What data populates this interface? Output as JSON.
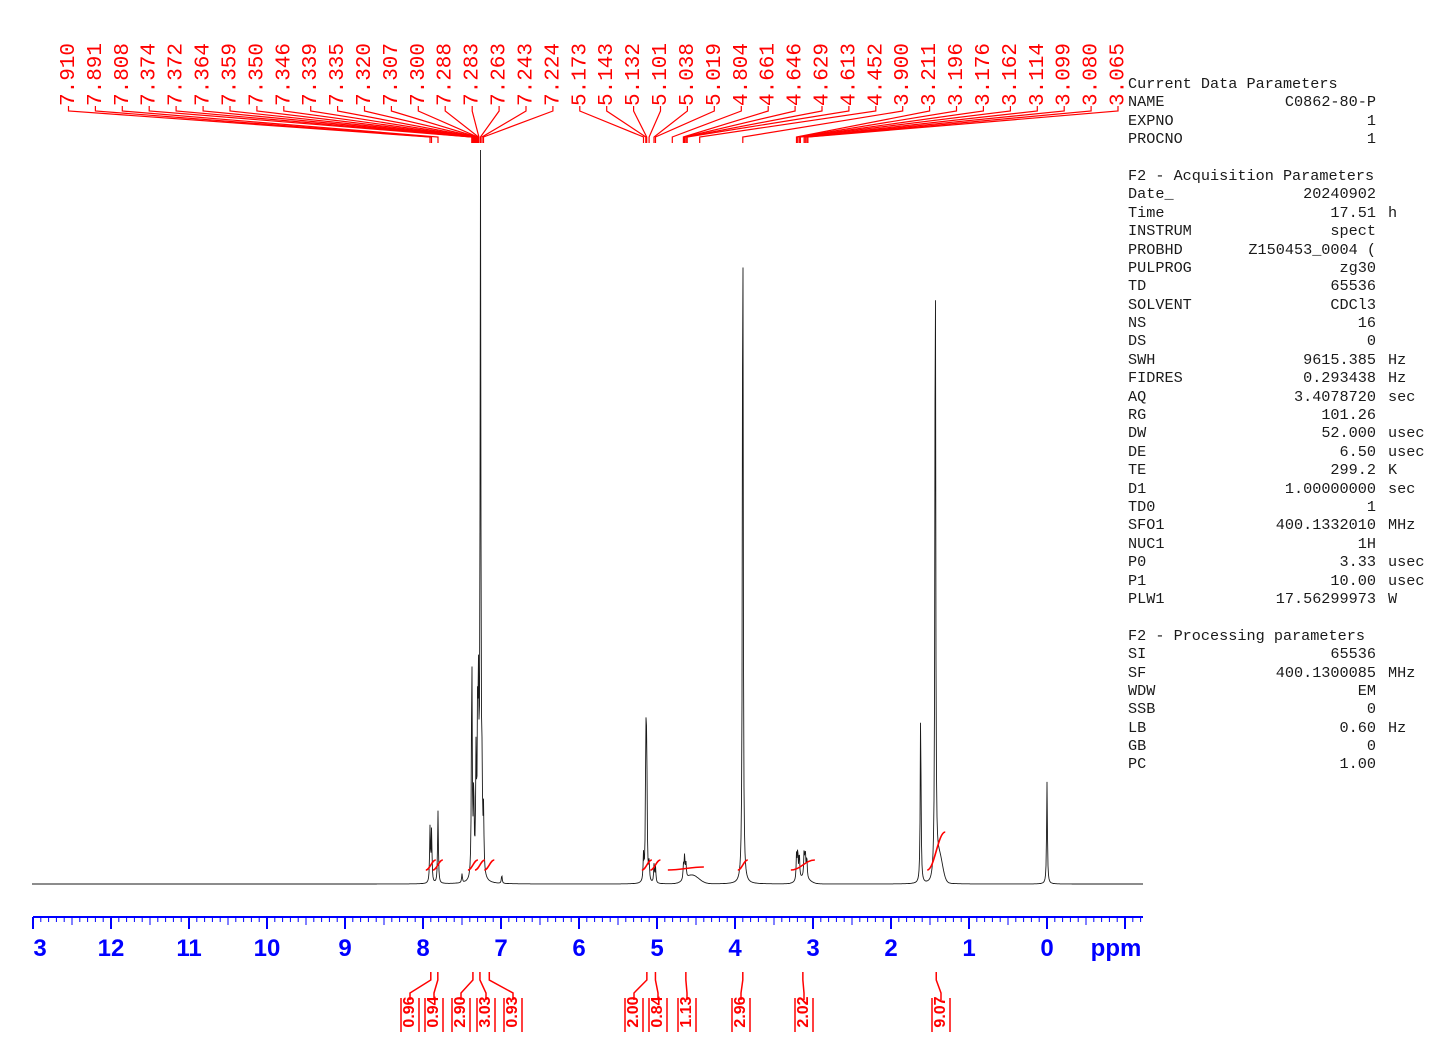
{
  "chart_data": {
    "type": "line",
    "xlabel": "ppm",
    "xlim": [
      13,
      -1.3
    ],
    "x_ticks": [
      "3",
      "12",
      "11",
      "10",
      "9",
      "8",
      "7",
      "6",
      "5",
      "4",
      "3",
      "2",
      "1",
      "0",
      "ppm"
    ],
    "peak_labels": [
      "7.910",
      "7.891",
      "7.808",
      "7.374",
      "7.372",
      "7.364",
      "7.359",
      "7.350",
      "7.346",
      "7.339",
      "7.335",
      "7.320",
      "7.307",
      "7.300",
      "7.288",
      "7.283",
      "7.263",
      "7.243",
      "7.224",
      "5.173",
      "5.143",
      "5.132",
      "5.101",
      "5.038",
      "5.019",
      "4.804",
      "4.661",
      "4.646",
      "4.629",
      "4.613",
      "4.452",
      "3.900",
      "3.211",
      "3.196",
      "3.176",
      "3.162",
      "3.114",
      "3.099",
      "3.080",
      "3.065"
    ],
    "integrals": [
      {
        "x": 7.9,
        "value": "0.96"
      },
      {
        "x": 7.81,
        "value": "0.94"
      },
      {
        "x": 7.36,
        "value": "2.90"
      },
      {
        "x": 7.27,
        "value": "3.03"
      },
      {
        "x": 7.15,
        "value": "0.93"
      },
      {
        "x": 5.13,
        "value": "2.00"
      },
      {
        "x": 5.02,
        "value": "0.84"
      },
      {
        "x": 4.63,
        "value": "1.13"
      },
      {
        "x": 3.9,
        "value": "2.96"
      },
      {
        "x": 3.13,
        "value": "2.02"
      },
      {
        "x": 1.42,
        "value": "9.07"
      }
    ],
    "peaks": [
      {
        "x": 7.91,
        "h": 0.075
      },
      {
        "x": 7.89,
        "h": 0.072
      },
      {
        "x": 7.808,
        "h": 0.1
      },
      {
        "x": 7.374,
        "h": 0.32
      },
      {
        "x": 7.35,
        "h": 0.12
      },
      {
        "x": 7.32,
        "h": 0.16
      },
      {
        "x": 7.3,
        "h": 0.2
      },
      {
        "x": 7.288,
        "h": 0.21
      },
      {
        "x": 7.263,
        "h": 1.0
      },
      {
        "x": 7.243,
        "h": 0.1
      },
      {
        "x": 7.224,
        "h": 0.08
      },
      {
        "x": 7.5,
        "h": 0.012
      },
      {
        "x": 6.99,
        "h": 0.012
      },
      {
        "x": 5.173,
        "h": 0.035
      },
      {
        "x": 5.143,
        "h": 0.19
      },
      {
        "x": 5.132,
        "h": 0.18
      },
      {
        "x": 5.101,
        "h": 0.025
      },
      {
        "x": 5.038,
        "h": 0.025
      },
      {
        "x": 5.019,
        "h": 0.022
      },
      {
        "x": 4.661,
        "h": 0.02
      },
      {
        "x": 4.646,
        "h": 0.032
      },
      {
        "x": 4.629,
        "h": 0.02
      },
      {
        "x": 3.9,
        "h": 1.0
      },
      {
        "x": 3.211,
        "h": 0.035
      },
      {
        "x": 3.196,
        "h": 0.04
      },
      {
        "x": 3.176,
        "h": 0.036
      },
      {
        "x": 3.114,
        "h": 0.034
      },
      {
        "x": 3.099,
        "h": 0.036
      },
      {
        "x": 3.08,
        "h": 0.03
      },
      {
        "x": 1.62,
        "h": 0.24
      },
      {
        "x": 1.432,
        "h": 0.92
      },
      {
        "x": 0.0,
        "h": 0.14
      }
    ]
  },
  "parameters": {
    "current_header": "Current Data Parameters",
    "current": [
      {
        "name": "NAME",
        "value": "C0862-80-P",
        "unit": ""
      },
      {
        "name": "EXPNO",
        "value": "1",
        "unit": ""
      },
      {
        "name": "PROCNO",
        "value": "1",
        "unit": ""
      }
    ],
    "acq_header": "F2 - Acquisition Parameters",
    "acquisition": [
      {
        "name": "Date_",
        "value": "20240902",
        "unit": ""
      },
      {
        "name": "Time",
        "value": "17.51",
        "unit": "h"
      },
      {
        "name": "INSTRUM",
        "value": "spect",
        "unit": ""
      },
      {
        "name": "PROBHD",
        "value": "Z150453_0004 (",
        "unit": ""
      },
      {
        "name": "PULPROG",
        "value": "zg30",
        "unit": ""
      },
      {
        "name": "TD",
        "value": "65536",
        "unit": ""
      },
      {
        "name": "SOLVENT",
        "value": "CDCl3",
        "unit": ""
      },
      {
        "name": "NS",
        "value": "16",
        "unit": ""
      },
      {
        "name": "DS",
        "value": "0",
        "unit": ""
      },
      {
        "name": "SWH",
        "value": "9615.385",
        "unit": "Hz"
      },
      {
        "name": "FIDRES",
        "value": "0.293438",
        "unit": "Hz"
      },
      {
        "name": "AQ",
        "value": "3.4078720",
        "unit": "sec"
      },
      {
        "name": "RG",
        "value": "101.26",
        "unit": ""
      },
      {
        "name": "DW",
        "value": "52.000",
        "unit": "usec"
      },
      {
        "name": "DE",
        "value": "6.50",
        "unit": "usec"
      },
      {
        "name": "TE",
        "value": "299.2",
        "unit": "K"
      },
      {
        "name": "D1",
        "value": "1.00000000",
        "unit": "sec"
      },
      {
        "name": "TD0",
        "value": "1",
        "unit": ""
      },
      {
        "name": "SFO1",
        "value": "400.1332010",
        "unit": "MHz"
      },
      {
        "name": "NUC1",
        "value": "1H",
        "unit": ""
      },
      {
        "name": "P0",
        "value": "3.33",
        "unit": "usec"
      },
      {
        "name": "P1",
        "value": "10.00",
        "unit": "usec"
      },
      {
        "name": "PLW1",
        "value": "17.56299973",
        "unit": "W"
      }
    ],
    "proc_header": "F2 - Processing parameters",
    "processing": [
      {
        "name": "SI",
        "value": "65536",
        "unit": ""
      },
      {
        "name": "SF",
        "value": "400.1300085",
        "unit": "MHz"
      },
      {
        "name": "WDW",
        "value": "EM",
        "unit": ""
      },
      {
        "name": "SSB",
        "value": "0",
        "unit": ""
      },
      {
        "name": "LB",
        "value": "0.60",
        "unit": "Hz"
      },
      {
        "name": "GB",
        "value": "0",
        "unit": ""
      },
      {
        "name": "PC",
        "value": "1.00",
        "unit": ""
      }
    ]
  },
  "colors": {
    "spectrum": "#1a1a1a",
    "annotation": "#ff0000",
    "axis": "#0000ff"
  }
}
